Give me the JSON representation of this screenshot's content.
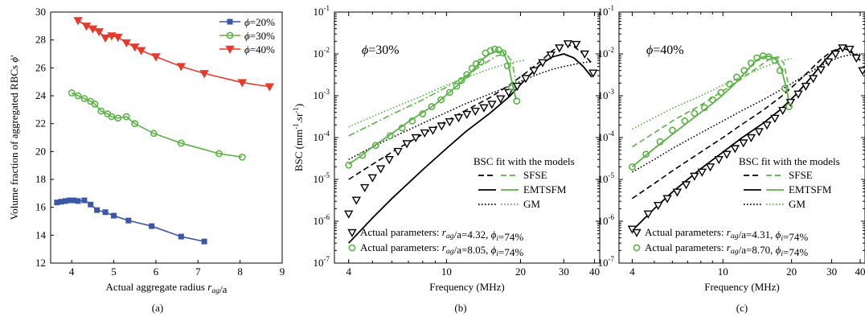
{
  "chart_data": [
    {
      "panel": "(a)",
      "type": "line",
      "xlabel": "Actual aggregate radius r_ag/a",
      "ylabel": "Volume fraction of aggregated RBCs ϕ'",
      "xlim": [
        3.5,
        9
      ],
      "ylim": [
        12,
        30
      ],
      "xticks": [
        "4",
        "5",
        "6",
        "7",
        "8",
        "9"
      ],
      "yticks": [
        "12",
        "14",
        "16",
        "18",
        "20",
        "22",
        "24",
        "26",
        "28",
        "30"
      ],
      "legend_position": "top-right",
      "series": [
        {
          "name": "ϕ=20%",
          "color": "#3a57a8",
          "marker": "square",
          "x": [
            3.65,
            3.75,
            3.85,
            3.95,
            4.05,
            4.15,
            4.3,
            4.45,
            4.6,
            4.8,
            5.0,
            5.35,
            5.9,
            6.6,
            7.15
          ],
          "y": [
            16.35,
            16.4,
            16.45,
            16.5,
            16.5,
            16.45,
            16.5,
            16.2,
            15.8,
            15.65,
            15.4,
            15.05,
            14.65,
            13.9,
            13.55
          ]
        },
        {
          "name": "ϕ=30%",
          "color": "#5bb346",
          "marker": "circle",
          "x": [
            4.0,
            4.15,
            4.3,
            4.45,
            4.55,
            4.7,
            4.85,
            4.95,
            5.1,
            5.3,
            5.5,
            5.95,
            6.6,
            7.5,
            8.05
          ],
          "y": [
            24.2,
            24.0,
            23.8,
            23.6,
            23.4,
            22.9,
            22.7,
            22.5,
            22.4,
            22.5,
            22.0,
            21.3,
            20.6,
            19.85,
            19.6
          ]
        },
        {
          "name": "ϕ=40%",
          "color": "#e83a2b",
          "marker": "triangle-down",
          "x": [
            4.15,
            4.35,
            4.5,
            4.65,
            4.8,
            4.95,
            5.1,
            5.3,
            5.5,
            5.65,
            6.0,
            6.6,
            7.15,
            8.05,
            8.7
          ],
          "y": [
            29.4,
            29.0,
            28.8,
            28.6,
            28.15,
            28.3,
            28.2,
            27.8,
            27.5,
            27.25,
            26.8,
            26.1,
            25.6,
            24.95,
            24.65
          ]
        }
      ]
    },
    {
      "panel": "(b)",
      "type": "line",
      "annotation": "ϕ=30%",
      "xlabel": "Frequency (MHz)",
      "ylabel": "BSC (mm⁻¹.sr⁻¹)",
      "x_scale": "log",
      "y_scale": "log",
      "xlim": [
        3.5,
        42
      ],
      "ylim": [
        1e-07,
        0.1
      ],
      "xticks": [
        "4",
        "10",
        "20",
        "30",
        "40"
      ],
      "legend_title": "BSC fit with the models",
      "legend_position": "bottom-right",
      "model_legend": [
        "SFSE",
        "EMTSFM",
        "GM"
      ],
      "marker_legend": [
        {
          "marker": "triangle-down",
          "text": "Actual parameters: r_ag/a=4.32, ϕ_i=74%"
        },
        {
          "marker": "circle",
          "text": "Actual parameters: r_ag/a=8.05, ϕ_i=74%"
        }
      ],
      "series": [
        {
          "name": "Actual parameters: r_ag/a=4.32, ϕ_i=74%",
          "color": "#000000",
          "marker": "triangle-down",
          "x": [
            4.0,
            4.3,
            4.65,
            5.0,
            5.4,
            5.85,
            6.35,
            6.9,
            7.5,
            8.15,
            8.8,
            9.55,
            10.3,
            11.2,
            12.1,
            13.1,
            14.2,
            15.3,
            16.6,
            17.9,
            19.4,
            21.0,
            22.7,
            24.6,
            26.6,
            28.8,
            31.2,
            33.7,
            36.5,
            39.5
          ],
          "y": [
            1.5e-06,
            3.2e-06,
            6.4e-06,
            1.1e-05,
            1.8e-05,
            3e-05,
            4.7e-05,
            7.2e-05,
            0.0001,
            0.00013,
            0.00015,
            0.00019,
            0.00024,
            0.0003,
            0.00036,
            0.00043,
            0.00052,
            0.00063,
            0.00085,
            0.0012,
            0.0017,
            0.0026,
            0.004,
            0.0062,
            0.0095,
            0.014,
            0.0175,
            0.017,
            0.01,
            0.0035
          ]
        },
        {
          "name": "Actual parameters: r_ag/a=8.05, ϕ_i=74%",
          "color": "#5bb346",
          "marker": "circle",
          "x": [
            4.0,
            4.55,
            5.15,
            5.9,
            6.6,
            7.25,
            8.0,
            8.7,
            9.5,
            10.3,
            11.0,
            11.5,
            12.1,
            12.7,
            13.2,
            13.8,
            14.4,
            15.1,
            15.7,
            16.3,
            17.0,
            17.7,
            18.4,
            19.3
          ],
          "y": [
            2.2e-05,
            3.8e-05,
            6.5e-05,
            0.00011,
            0.00017,
            0.00025,
            0.00037,
            0.00055,
            0.0008,
            0.0012,
            0.0017,
            0.0023,
            0.0032,
            0.0045,
            0.0058,
            0.0065,
            0.0105,
            0.012,
            0.013,
            0.0125,
            0.0105,
            0.0052,
            0.0016,
            0.00075
          ]
        }
      ],
      "model_curves": [
        {
          "model": "EMTSFM",
          "for": "r_ag/a=4.32",
          "color": "#000000",
          "style": "solid",
          "x": [
            4.0,
            5.0,
            6.0,
            8.0,
            10.0,
            12.0,
            15.0,
            18.0,
            21.0,
            24.0,
            27.0,
            30.0,
            33.0,
            36.0,
            39.0
          ],
          "y": [
            3e-07,
            1.2e-06,
            3.5e-06,
            1.7e-05,
            5.5e-05,
            0.00014,
            0.00038,
            0.00095,
            0.0025,
            0.0055,
            0.0085,
            0.01,
            0.008,
            0.005,
            0.0028
          ]
        },
        {
          "model": "SFSE",
          "for": "r_ag/a=4.32",
          "color": "#000000",
          "style": "dashed",
          "x": [
            4.0,
            5.0,
            6.0,
            8.0,
            10.0,
            12.0,
            15.0,
            18.0,
            21.0,
            24.0,
            27.0,
            30.0,
            33.0,
            36.0,
            39.0
          ],
          "y": [
            1e-05,
            2.3e-05,
            4.5e-05,
            0.00012,
            0.00025,
            0.00045,
            0.0009,
            0.0018,
            0.0035,
            0.0065,
            0.012,
            0.0175,
            0.015,
            0.01,
            0.006
          ]
        },
        {
          "model": "GM",
          "for": "r_ag/a=4.32",
          "color": "#000000",
          "style": "dotted",
          "x": [
            4.0,
            5.0,
            6.0,
            8.0,
            10.0,
            12.0,
            15.0,
            18.0,
            21.0,
            24.0,
            27.0,
            30.0,
            33.0,
            36.0,
            39.0
          ],
          "y": [
            3e-05,
            6e-05,
            0.0001,
            0.00022,
            0.0004,
            0.00065,
            0.0011,
            0.0017,
            0.0025,
            0.0034,
            0.0043,
            0.005,
            0.0056,
            0.0062,
            0.0065
          ]
        },
        {
          "model": "EMTSFM",
          "for": "r_ag/a=8.05",
          "color": "#5bb346",
          "style": "solid",
          "x": [
            4.0,
            4.5,
            5.0,
            6.0,
            7.0,
            8.0,
            9.0,
            10.0,
            11.0,
            12.0,
            13.0,
            14.0,
            15.0,
            16.0,
            17.0,
            17.8,
            18.5,
            19.2
          ],
          "y": [
            2.3e-05,
            3.7e-05,
            6e-05,
            0.000125,
            0.00024,
            0.0004,
            0.00062,
            0.00105,
            0.0017,
            0.0027,
            0.0045,
            0.0075,
            0.01,
            0.0115,
            0.011,
            0.006,
            0.002,
            0.0008
          ]
        },
        {
          "model": "SFSE",
          "for": "r_ag/a=8.05",
          "color": "#5bb346",
          "style": "dashdot",
          "x": [
            4.0,
            5.0,
            6.0,
            8.0,
            10.0,
            12.0,
            14.0,
            16.0,
            17.5,
            18.5,
            19.3
          ],
          "y": [
            0.00011,
            0.00021,
            0.00036,
            0.0008,
            0.0016,
            0.003,
            0.0055,
            0.009,
            0.01,
            0.0065,
            0.0016
          ]
        },
        {
          "model": "GM",
          "for": "r_ag/a=8.05",
          "color": "#5bb346",
          "style": "dotted",
          "x": [
            4.0,
            5.0,
            6.0,
            8.0,
            10.0,
            12.0,
            15.0,
            18.0,
            21.0
          ],
          "y": [
            0.00018,
            0.00032,
            0.0005,
            0.001,
            0.0018,
            0.0027,
            0.0044,
            0.006,
            0.0072
          ]
        }
      ]
    },
    {
      "panel": "(c)",
      "type": "line",
      "annotation": "ϕ=40%",
      "xlabel": "Frequency (MHz)",
      "x_scale": "log",
      "y_scale": "log",
      "xlim": [
        3.5,
        42
      ],
      "ylim": [
        1e-07,
        0.1
      ],
      "xticks": [
        "4",
        "10",
        "20",
        "30",
        "40"
      ],
      "legend_title": "BSC fit with the models",
      "legend_position": "bottom-right",
      "model_legend": [
        "SFSE",
        "EMTSFM",
        "GM"
      ],
      "marker_legend": [
        {
          "marker": "triangle-down",
          "text": "Actual parameters: r_ag/a=4.31, ϕ_i=74%"
        },
        {
          "marker": "circle",
          "text": "Actual parameters: r_ag/a=8.70, ϕ_i=74%"
        }
      ],
      "series": [
        {
          "name": "Actual parameters: r_ag/a=4.31, ϕ_i=74%",
          "color": "#000000",
          "marker": "triangle-down",
          "x": [
            4.0,
            4.7,
            5.2,
            5.7,
            6.3,
            6.9,
            7.5,
            8.1,
            8.8,
            9.6,
            10.4,
            11.3,
            12.3,
            13.3,
            14.4,
            15.6,
            16.9,
            18.3,
            19.8,
            21.4,
            23.1,
            24.9,
            26.9,
            29.0,
            31.2,
            33.5,
            36.0,
            38.5,
            41.0
          ],
          "y": [
            6.5e-07,
            1.5e-06,
            2.4e-06,
            3.5e-06,
            5e-06,
            7.5e-06,
            1.2e-05,
            1.5e-05,
            2e-05,
            3e-05,
            4e-05,
            5.5e-05,
            7.5e-05,
            0.0001,
            0.00014,
            0.0002,
            0.00029,
            0.00045,
            0.0007,
            0.0011,
            0.0017,
            0.0026,
            0.0042,
            0.0065,
            0.01,
            0.014,
            0.013,
            0.008,
            0.004
          ]
        },
        {
          "name": "Actual parameters: r_ag/a=8.70, ϕ_i=74%",
          "color": "#5bb346",
          "marker": "circle",
          "x": [
            4.0,
            4.6,
            5.3,
            6.0,
            6.8,
            7.5,
            8.3,
            9.0,
            9.8,
            10.7,
            11.5,
            12.4,
            13.3,
            14.1,
            15.0,
            15.9,
            16.9,
            17.8,
            18.7,
            19.5
          ],
          "y": [
            2e-05,
            4e-05,
            8e-05,
            0.00015,
            0.00025,
            0.00038,
            0.00052,
            0.0008,
            0.0012,
            0.0019,
            0.0028,
            0.004,
            0.006,
            0.008,
            0.009,
            0.0085,
            0.007,
            0.004,
            0.0015,
            0.00055
          ]
        }
      ],
      "model_curves": [
        {
          "model": "EMTSFM",
          "for": "r_ag/a=4.31",
          "color": "#000000",
          "style": "solid",
          "x": [
            4.0,
            5.0,
            6.0,
            8.0,
            10.0,
            12.0,
            15.0,
            18.0,
            21.0,
            24.0,
            27.0,
            30.0,
            33.0,
            36.0,
            40.0
          ],
          "y": [
            6e-07,
            2e-06,
            5e-06,
            1.8e-05,
            4.5e-05,
            9.5e-05,
            0.00022,
            0.00048,
            0.0011,
            0.0025,
            0.0055,
            0.0105,
            0.014,
            0.012,
            0.007
          ]
        },
        {
          "model": "SFSE",
          "for": "r_ag/a=4.31",
          "color": "#000000",
          "style": "dashed",
          "x": [
            4.0,
            5.0,
            6.0,
            8.0,
            10.0,
            12.0,
            15.0,
            18.0,
            21.0,
            24.0,
            27.0,
            30.0,
            33.0,
            36.0,
            40.0
          ],
          "y": [
            3.5e-06,
            8e-06,
            1.6e-05,
            4.5e-05,
            0.0001,
            0.0002,
            0.00045,
            0.00095,
            0.002,
            0.004,
            0.0075,
            0.0115,
            0.014,
            0.0125,
            0.008
          ]
        },
        {
          "model": "GM",
          "for": "r_ag/a=4.31",
          "color": "#000000",
          "style": "dotted",
          "x": [
            4.0,
            5.0,
            6.0,
            8.0,
            10.0,
            12.0,
            15.0,
            18.0,
            21.0,
            24.0,
            27.0,
            30.0,
            33.0,
            36.0,
            40.0
          ],
          "y": [
            1.5e-05,
            3e-05,
            5.5e-05,
            0.00013,
            0.00025,
            0.00043,
            0.0008,
            0.0014,
            0.0023,
            0.0036,
            0.0052,
            0.007,
            0.0085,
            0.0095,
            0.01
          ]
        },
        {
          "model": "EMTSFM",
          "for": "r_ag/a=8.70",
          "color": "#5bb346",
          "style": "solid",
          "x": [
            4.0,
            5.0,
            6.0,
            7.0,
            8.0,
            9.0,
            10.0,
            11.0,
            12.0,
            13.0,
            14.0,
            15.0,
            16.0,
            17.0,
            18.0,
            19.0,
            19.5
          ],
          "y": [
            2e-05,
            5.5e-05,
            0.00012,
            0.00023,
            0.0004,
            0.00065,
            0.00105,
            0.0017,
            0.0028,
            0.0045,
            0.007,
            0.0085,
            0.0088,
            0.0075,
            0.0045,
            0.0015,
            0.0007
          ]
        },
        {
          "model": "SFSE",
          "for": "r_ag/a=8.70",
          "color": "#5bb346",
          "style": "dashed",
          "x": [
            4.0,
            5.0,
            6.0,
            8.0,
            10.0,
            12.0,
            14.0,
            16.0,
            17.5,
            18.5,
            19.3
          ],
          "y": [
            6e-05,
            0.00013,
            0.00025,
            0.0006,
            0.0013,
            0.0025,
            0.0045,
            0.0075,
            0.0085,
            0.006,
            0.002
          ]
        },
        {
          "model": "GM",
          "for": "r_ag/a=8.70",
          "color": "#5bb346",
          "style": "dotted",
          "x": [
            4.0,
            5.0,
            6.0,
            8.0,
            10.0,
            12.0,
            15.0,
            18.0,
            20.0
          ],
          "y": [
            0.00016,
            0.0003,
            0.0005,
            0.001,
            0.0018,
            0.0028,
            0.0048,
            0.0068,
            0.0078
          ]
        }
      ]
    }
  ],
  "captions": [
    "(a)",
    "(b)",
    "(c)"
  ]
}
